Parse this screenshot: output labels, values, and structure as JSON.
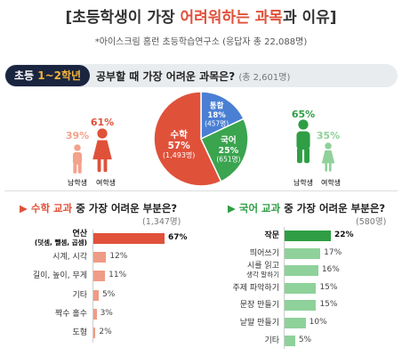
{
  "header": {
    "title_open": "[초등학생이 가장 ",
    "title_accent": "어려워하는 과목",
    "title_close": "과 이유]",
    "subtitle": "*아이스크림 홈런 초등학습연구소 (응답자 총 22,088명)"
  },
  "grade_section": {
    "badge_prefix": "초등 ",
    "badge_highlight": "1~2학년",
    "question": "공부할 때 가장 어려운 과목은?",
    "count": "(총 2,601명)"
  },
  "chart_data": [
    {
      "type": "pie",
      "title": "공부할 때 가장 어려운 과목은?",
      "slices": [
        {
          "name": "수학",
          "value": 57,
          "count": "(1,493명)",
          "color": "#e0513a"
        },
        {
          "name": "국어",
          "value": 25,
          "count": "(651명)",
          "color": "#3aa44f"
        },
        {
          "name": "통합",
          "value": 18,
          "count": "(457명)",
          "color": "#4a7fd4"
        }
      ],
      "slice_labels": {
        "수학": {
          "name": "수학",
          "pct": "57%",
          "count": "(1,493명)"
        },
        "국어": {
          "name": "국어",
          "pct": "25%",
          "count": "(651명)"
        },
        "통합": {
          "name": "통합",
          "pct": "18%",
          "count": "(457명)"
        }
      }
    },
    {
      "type": "bar",
      "title": "수학 교과 중 가장 어려운 부분은?",
      "title_prefix": "▶ ",
      "title_accent": "수학 교과",
      "title_rest": " 중 가장 어려운 부분은?",
      "count": "(1,347명)",
      "categories": [
        "연산 (덧셈, 뺄셈, 곱셈)",
        "시계, 시각",
        "길이, 높이, 무게",
        "기타",
        "짝수 홀수",
        "도형"
      ],
      "label_lines": [
        [
          "연산",
          "(덧셈, 뺄셈, 곱셈)"
        ],
        [
          "시계, 시각"
        ],
        [
          "길이, 높이, 무게"
        ],
        [
          "기타"
        ],
        [
          "짝수 홀수"
        ],
        [
          "도형"
        ]
      ],
      "values": [
        67,
        12,
        11,
        5,
        3,
        2
      ],
      "value_labels": [
        "67%",
        "12%",
        "11%",
        "5%",
        "3%",
        "2%"
      ],
      "colors": {
        "top": "#e0513a",
        "rest": "#ef9b86"
      }
    },
    {
      "type": "bar",
      "title": "국어 교과 중 가장 어려운 부분은?",
      "title_prefix": "▶ ",
      "title_accent": "국어 교과",
      "title_rest": " 중 가장 어려운 부분은?",
      "count": "(580명)",
      "categories": [
        "작문",
        "띄어쓰기",
        "시를 읽고 생각 말하기",
        "주제 파악하기",
        "문장 만들기",
        "낱말 만들기",
        "기타"
      ],
      "label_lines": [
        [
          "작문"
        ],
        [
          "띄어쓰기"
        ],
        [
          "시를 읽고",
          "생각 말하기"
        ],
        [
          "주제 파악하기"
        ],
        [
          "문장 만들기"
        ],
        [
          "낱말 만들기"
        ],
        [
          "기타"
        ]
      ],
      "values": [
        22,
        17,
        16,
        15,
        15,
        10,
        5
      ],
      "value_labels": [
        "22%",
        "17%",
        "16%",
        "15%",
        "15%",
        "10%",
        "5%"
      ],
      "colors": {
        "top": "#2f9e44",
        "rest": "#8fd19a"
      }
    }
  ],
  "gender_math": {
    "male_pct": "39%",
    "female_pct": "61%",
    "male_label": "남학생",
    "female_label": "여학생",
    "color_large": "#e0513a",
    "color_small": "#f3a28b"
  },
  "gender_korean": {
    "male_pct": "65%",
    "female_pct": "35%",
    "male_label": "남학생",
    "female_label": "여학생",
    "color_large": "#2f9e44",
    "color_small": "#8fd19a"
  }
}
